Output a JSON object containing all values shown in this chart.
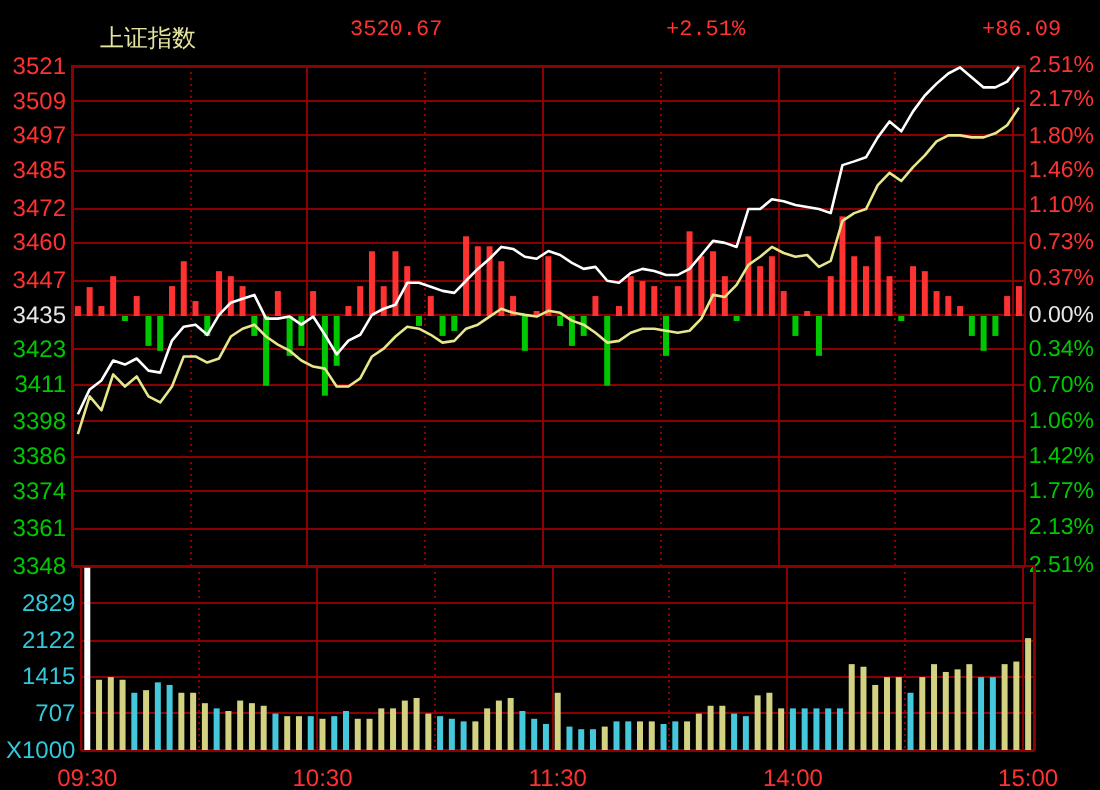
{
  "chart_data": [
    {
      "type": "line",
      "title": "上证指数",
      "annotations": [
        "3520.67",
        "+2.51%",
        "+86.09"
      ],
      "categories": [
        null,
        null,
        null,
        null,
        null,
        null,
        null,
        null,
        null,
        null,
        null,
        null,
        null,
        null,
        null,
        null,
        null,
        null,
        null,
        null,
        null,
        null,
        null,
        null,
        null,
        null,
        null,
        null,
        null,
        null,
        null,
        null,
        null,
        null,
        null,
        null,
        null,
        null,
        null,
        null,
        null,
        null,
        null,
        null,
        null,
        null,
        null,
        null,
        null,
        null,
        null,
        null,
        null,
        null,
        null,
        null,
        null,
        null,
        null,
        null,
        null,
        null,
        null,
        null,
        null,
        null,
        null,
        null,
        null,
        null,
        null,
        null,
        null,
        null,
        null,
        null,
        null,
        null,
        null,
        null,
        null
      ],
      "ylim": [
        3348,
        3521
      ],
      "yticks": [
        3348,
        3361,
        3374,
        3386,
        3398,
        3411,
        3423,
        3435,
        3447,
        3460,
        3472,
        3485,
        3497,
        3509,
        3521
      ],
      "y2lim": [
        -2.51,
        2.51
      ],
      "y2ticks": [
        {
          "value": -2.51,
          "label": "2.51%"
        },
        {
          "value": -2.13,
          "label": "2.13%"
        },
        {
          "value": -1.77,
          "label": "1.77%"
        },
        {
          "value": -1.42,
          "label": "1.42%"
        },
        {
          "value": -1.06,
          "label": "1.06%"
        },
        {
          "value": -0.7,
          "label": "0.70%"
        },
        {
          "value": -0.34,
          "label": "0.34%"
        },
        {
          "value": 0,
          "label": "0.00%"
        },
        {
          "value": 0.37,
          "label": "0.37%"
        },
        {
          "value": 0.73,
          "label": "0.73%"
        },
        {
          "value": 1.1,
          "label": "1.10%"
        },
        {
          "value": 1.46,
          "label": "1.46%"
        },
        {
          "value": 1.8,
          "label": "1.80%"
        },
        {
          "value": 2.17,
          "label": "2.17%"
        },
        {
          "value": 2.51,
          "label": "2.51%"
        }
      ],
      "tick_labels": "y",
      "grid": true,
      "series": [
        {
          "type": "bar",
          "axis": "y2",
          "values": [
            0.1,
            0.29,
            0.1,
            0.4,
            -0.05,
            0.2,
            -0.3,
            -0.35,
            0.3,
            0.55,
            0.15,
            -0.2,
            0.45,
            0.4,
            0.3,
            -0.2,
            -0.7,
            0.25,
            -0.4,
            -0.3,
            0.25,
            -0.8,
            -0.5,
            0.1,
            0.3,
            0.65,
            0.3,
            0.65,
            0.5,
            -0.1,
            0.2,
            -0.2,
            -0.15,
            0.8,
            0.7,
            0.7,
            0.55,
            0.2,
            -0.35,
            0.05,
            0.6,
            -0.1,
            -0.3,
            -0.2,
            0.2,
            -0.7,
            0.1,
            0.4,
            0.35,
            0.3,
            -0.4,
            0.3,
            0.85,
            0.6,
            0.65,
            0.4,
            -0.05,
            0.8,
            0.5,
            0.6,
            0.25,
            -0.2,
            0.05,
            -0.4,
            0.4,
            1.0,
            0.6,
            0.5,
            0.8,
            0.4,
            -0.05,
            0.5,
            0.45,
            0.25,
            0.2,
            0.1,
            -0.2,
            -0.35,
            -0.2,
            0.2,
            0.3
          ],
          "colors": [
            "#ff3232",
            "#ff3232",
            "#ff3232",
            "#ff3232",
            "#00c800",
            "#ff3232",
            "#00c800",
            "#00c800",
            "#ff3232",
            "#ff3232",
            "#ff3232",
            "#00c800",
            "#ff3232",
            "#ff3232",
            "#ff3232",
            "#00c800",
            "#00c800",
            "#ff3232",
            "#00c800",
            "#00c800",
            "#ff3232",
            "#00c800",
            "#00c800",
            "#ff3232",
            "#ff3232",
            "#ff3232",
            "#ff3232",
            "#ff3232",
            "#ff3232",
            "#00c800",
            "#ff3232",
            "#00c800",
            "#00c800",
            "#ff3232",
            "#ff3232",
            "#ff3232",
            "#ff3232",
            "#ff3232",
            "#00c800",
            "#ff3232",
            "#ff3232",
            "#00c800",
            "#00c800",
            "#00c800",
            "#ff3232",
            "#00c800",
            "#ff3232",
            "#ff3232",
            "#ff3232",
            "#ff3232",
            "#00c800",
            "#ff3232",
            "#ff3232",
            "#ff3232",
            "#ff3232",
            "#ff3232",
            "#00c800",
            "#ff3232",
            "#ff3232",
            "#ff3232",
            "#ff3232",
            "#00c800",
            "#ff3232",
            "#00c800",
            "#ff3232",
            "#ff3232",
            "#ff3232",
            "#ff3232",
            "#ff3232",
            "#ff3232",
            "#00c800",
            "#ff3232",
            "#ff3232",
            "#ff3232",
            "#ff3232",
            "#ff3232",
            "#00c800",
            "#00c800",
            "#00c800",
            "#ff3232",
            "#ff3232"
          ]
        },
        {
          "color": "#e6e68c",
          "values": [
            3393.6,
            3406.7,
            3401.9,
            3414.3,
            3410.1,
            3413.6,
            3406.7,
            3404.6,
            3410.1,
            3420.5,
            3420.5,
            3418.4,
            3419.8,
            3427.4,
            3430.1,
            3431.5,
            3427.4,
            3424.6,
            3422.5,
            3419.1,
            3417.0,
            3416.3,
            3410.1,
            3410.1,
            3412.9,
            3420.5,
            3423.2,
            3427.4,
            3430.8,
            3430.1,
            3428.0,
            3425.3,
            3425.9,
            3430.1,
            3431.5,
            3434.3,
            3437.0,
            3435.6,
            3434.9,
            3434.3,
            3436.3,
            3435.6,
            3432.9,
            3431.5,
            3428.7,
            3425.3,
            3425.9,
            3428.7,
            3430.1,
            3430.1,
            3429.4,
            3428.7,
            3429.4,
            3433.6,
            3441.8,
            3441.1,
            3445.3,
            3452.2,
            3455.0,
            3458.4,
            3456.3,
            3455.0,
            3455.6,
            3451.5,
            3453.6,
            3467.4,
            3470.1,
            3471.5,
            3479.8,
            3484.0,
            3481.2,
            3486.0,
            3490.1,
            3494.9,
            3497.0,
            3497.0,
            3496.3,
            3496.3,
            3497.7,
            3500.5,
            3506.6
          ]
        },
        {
          "color": "#ffffff",
          "values": [
            3400.5,
            3409.1,
            3412.2,
            3419.1,
            3417.7,
            3419.8,
            3415.6,
            3414.9,
            3426.0,
            3430.8,
            3431.5,
            3428.0,
            3434.9,
            3439.1,
            3440.5,
            3441.8,
            3433.6,
            3433.6,
            3434.3,
            3431.5,
            3434.3,
            3428.0,
            3421.2,
            3426.0,
            3428.0,
            3434.9,
            3437.0,
            3438.4,
            3446.0,
            3446.0,
            3444.6,
            3443.2,
            3442.5,
            3446.7,
            3450.8,
            3454.3,
            3458.4,
            3457.7,
            3455.0,
            3454.3,
            3457.0,
            3455.6,
            3452.9,
            3450.8,
            3451.5,
            3446.7,
            3446.0,
            3449.4,
            3450.8,
            3450.1,
            3448.7,
            3448.7,
            3450.8,
            3455.6,
            3460.5,
            3459.8,
            3458.4,
            3471.5,
            3471.5,
            3474.9,
            3474.2,
            3472.9,
            3472.2,
            3471.5,
            3470.1,
            3486.7,
            3488.0,
            3489.4,
            3496.3,
            3501.8,
            3498.4,
            3505.3,
            3510.8,
            3514.9,
            3518.4,
            3520.5,
            3517.0,
            3513.6,
            3513.6,
            3515.6,
            3520.7
          ]
        }
      ]
    },
    {
      "type": "bar",
      "categories": [
        "09:30",
        null,
        null,
        null,
        null,
        null,
        null,
        null,
        null,
        null,
        null,
        null,
        null,
        null,
        null,
        null,
        null,
        null,
        null,
        null,
        "10:30",
        null,
        null,
        null,
        null,
        null,
        null,
        null,
        null,
        null,
        null,
        null,
        null,
        null,
        null,
        null,
        null,
        null,
        null,
        null,
        "11:30",
        null,
        null,
        null,
        null,
        null,
        null,
        null,
        null,
        null,
        null,
        null,
        null,
        null,
        null,
        null,
        null,
        null,
        null,
        null,
        "14:00",
        null,
        null,
        null,
        null,
        null,
        null,
        null,
        null,
        null,
        null,
        null,
        null,
        null,
        null,
        null,
        null,
        null,
        null,
        null,
        "15:00"
      ],
      "ylim": [
        0,
        3536
      ],
      "yticks": [
        {
          "value": 0,
          "label": "X1000"
        },
        707,
        1415,
        2122,
        2829
      ],
      "grid": true,
      "values": [
        3500,
        1350,
        1400,
        1350,
        1100,
        1150,
        1300,
        1250,
        1100,
        1100,
        900,
        800,
        750,
        950,
        900,
        850,
        700,
        650,
        650,
        650,
        600,
        650,
        750,
        600,
        600,
        800,
        800,
        950,
        1000,
        700,
        650,
        600,
        550,
        550,
        800,
        950,
        1000,
        750,
        600,
        500,
        1100,
        450,
        400,
        400,
        450,
        550,
        550,
        550,
        550,
        500,
        550,
        550,
        700,
        850,
        850,
        700,
        650,
        1050,
        1100,
        800,
        800,
        800,
        800,
        800,
        800,
        1650,
        1600,
        1250,
        1400,
        1400,
        1100,
        1400,
        1650,
        1500,
        1550,
        1650,
        1400,
        1400,
        1650,
        1700,
        2150
      ],
      "colors": [
        "#ffffff",
        "#d2d282",
        "#d2d282",
        "#d2d282",
        "#46c8dc",
        "#d2d282",
        "#46c8dc",
        "#46c8dc",
        "#d2d282",
        "#d2d282",
        "#d2d282",
        "#46c8dc",
        "#d2d282",
        "#d2d282",
        "#d2d282",
        "#d2d282",
        "#46c8dc",
        "#d2d282",
        "#d2d282",
        "#46c8dc",
        "#d2d282",
        "#46c8dc",
        "#46c8dc",
        "#d2d282",
        "#d2d282",
        "#d2d282",
        "#d2d282",
        "#d2d282",
        "#d2d282",
        "#d2d282",
        "#46c8dc",
        "#46c8dc",
        "#46c8dc",
        "#d2d282",
        "#d2d282",
        "#d2d282",
        "#d2d282",
        "#46c8dc",
        "#46c8dc",
        "#46c8dc",
        "#d2d282",
        "#46c8dc",
        "#46c8dc",
        "#46c8dc",
        "#d2d282",
        "#46c8dc",
        "#46c8dc",
        "#d2d282",
        "#d2d282",
        "#46c8dc",
        "#46c8dc",
        "#d2d282",
        "#d2d282",
        "#d2d282",
        "#d2d282",
        "#46c8dc",
        "#46c8dc",
        "#d2d282",
        "#d2d282",
        "#d2d282",
        "#46c8dc",
        "#46c8dc",
        "#46c8dc",
        "#46c8dc",
        "#46c8dc",
        "#d2d282",
        "#d2d282",
        "#d2d282",
        "#d2d282",
        "#d2d282",
        "#46c8dc",
        "#d2d282",
        "#d2d282",
        "#d2d282",
        "#d2d282",
        "#d2d282",
        "#46c8dc",
        "#46c8dc",
        "#d2d282",
        "#d2d282",
        "#d2d282"
      ]
    }
  ]
}
